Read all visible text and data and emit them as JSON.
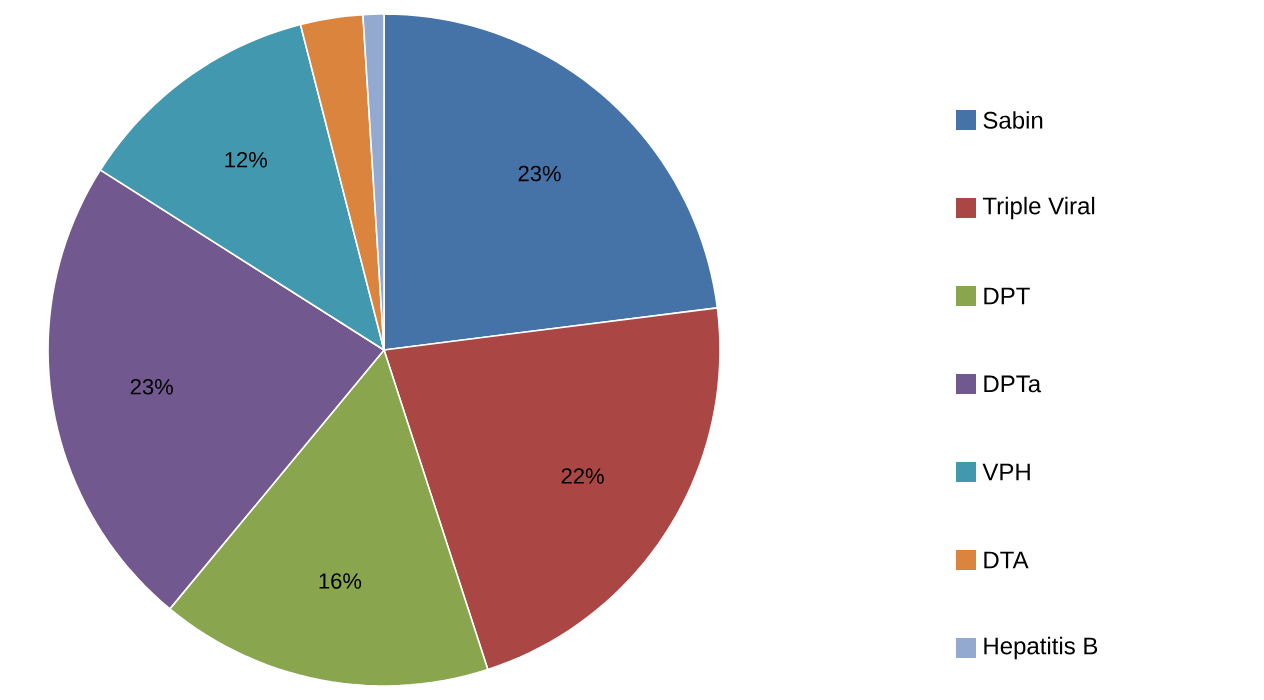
{
  "chart_data": {
    "type": "pie",
    "categories": [
      "Sabin",
      "Triple Viral",
      "DPT",
      "DPTa",
      "VPH",
      "DTA",
      "Hepatitis B"
    ],
    "values": [
      23,
      22,
      16,
      23,
      12,
      3,
      1
    ],
    "colors": [
      "#4572a7",
      "#aa4643",
      "#89a54e",
      "#71588f",
      "#4198af",
      "#db843d",
      "#93a9cf"
    ],
    "value_labels": [
      "23%",
      "22%",
      "16%",
      "23%",
      "12%",
      null,
      null
    ],
    "legend": "right"
  }
}
